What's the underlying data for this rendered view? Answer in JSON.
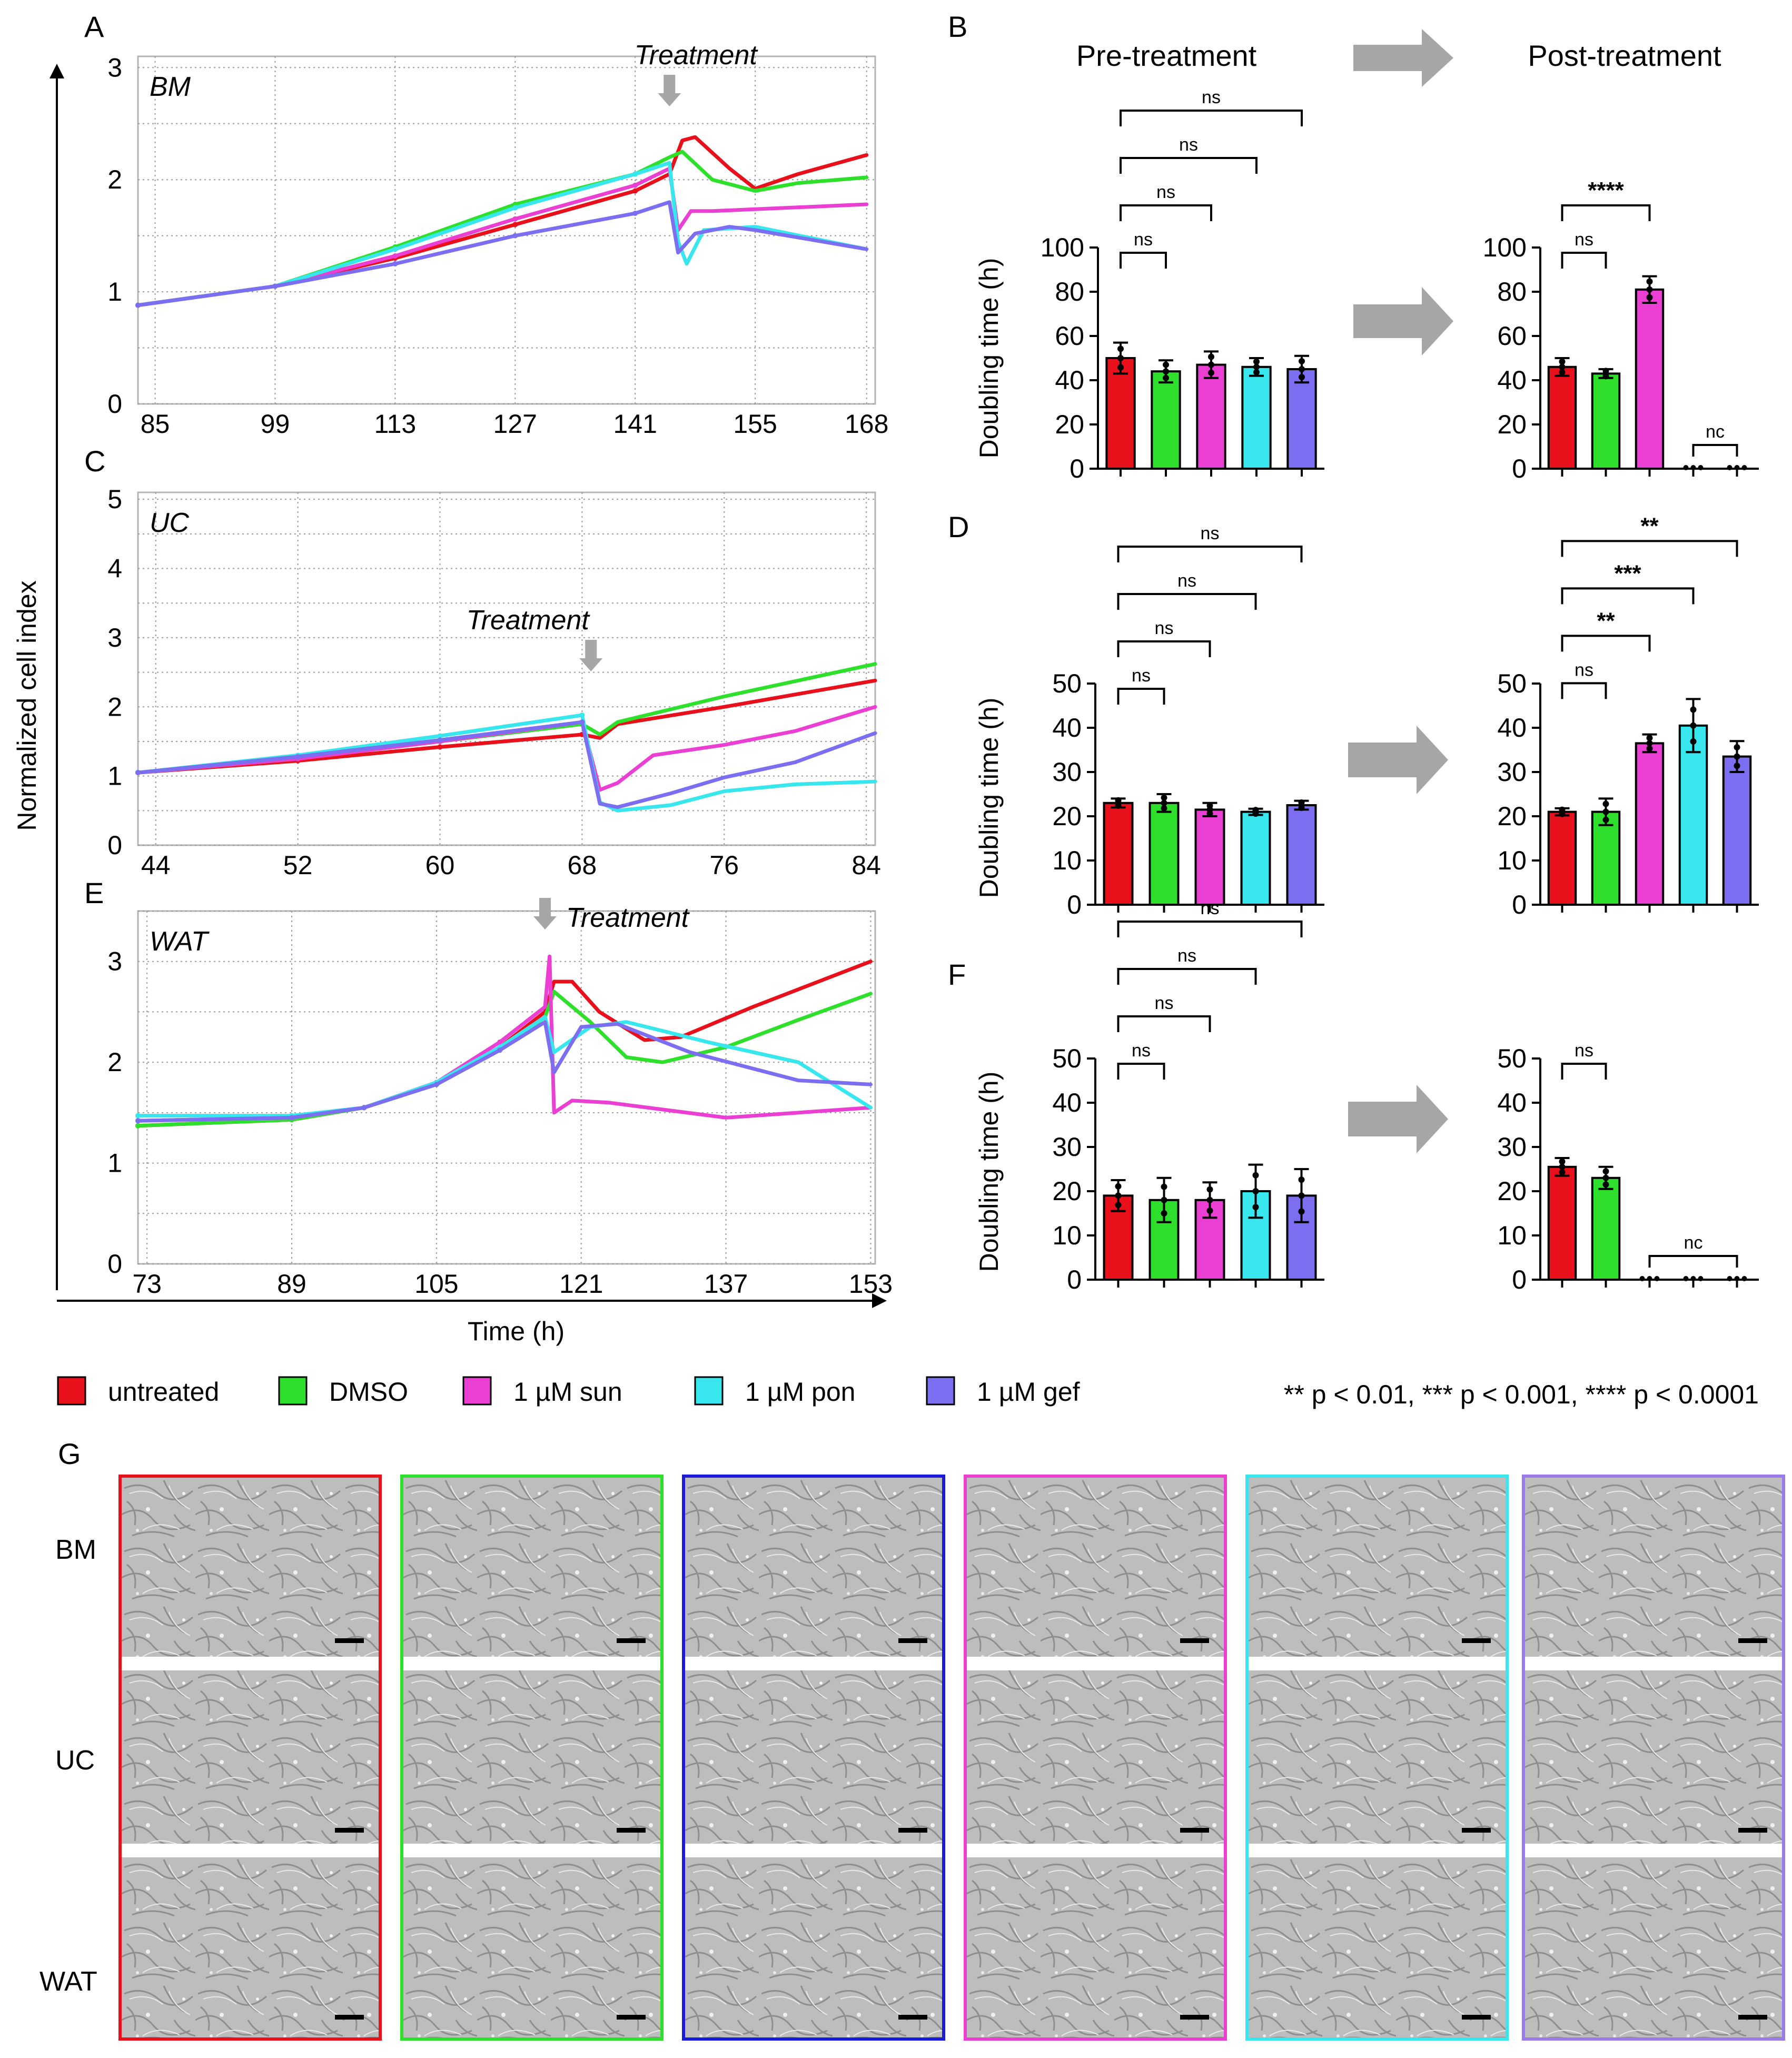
{
  "panel_letters": {
    "A": "A",
    "B": "B",
    "C": "C",
    "D": "D",
    "E": "E",
    "F": "F",
    "G": "G"
  },
  "shared": {
    "y_axis_label": "Normalized cell index",
    "x_axis_label": "Time (h)",
    "bar_y_label": "Doubling time (h)",
    "pre_title": "Pre-treatment",
    "post_title": "Post-treatment",
    "treatment_label": "Treatment"
  },
  "legend": [
    {
      "label": "untreated",
      "color": "#e8101a"
    },
    {
      "label": "DMSO",
      "color": "#2ee02c"
    },
    {
      "label": "1 µM sun",
      "color": "#ea3fd2"
    },
    {
      "label": "1 µM pon",
      "color": "#38e6ee"
    },
    {
      "label": "1 µM gef",
      "color": "#7b6ef0"
    }
  ],
  "pvalue_note": "** p < 0.01, *** p < 0.001, **** p < 0.0001",
  "colors": {
    "untreated": "#e8101a",
    "DMSO": "#2ee02c",
    "sun": "#ea3fd2",
    "pon": "#38e6ee",
    "gef": "#7b6ef0",
    "arrow": "#a6a6a6",
    "grid": "#9a9a9a"
  },
  "chart_data": [
    {
      "id": "A",
      "type": "line",
      "label": "BM",
      "xlim": [
        83,
        169
      ],
      "ylim": [
        0,
        3.1
      ],
      "xticks": [
        85,
        99,
        113,
        127,
        141,
        155,
        168
      ],
      "yticks": [
        0,
        1,
        2,
        3
      ],
      "treatment_time": 145,
      "series": [
        {
          "name": "untreated",
          "color": "#e8101a",
          "points": [
            [
              83,
              0.88
            ],
            [
              99,
              1.05
            ],
            [
              113,
              1.3
            ],
            [
              127,
              1.6
            ],
            [
              141,
              1.9
            ],
            [
              145,
              2.05
            ],
            [
              146.5,
              2.35
            ],
            [
              148,
              2.38
            ],
            [
              152,
              2.1
            ],
            [
              155,
              1.92
            ],
            [
              160,
              2.05
            ],
            [
              168,
              2.22
            ]
          ]
        },
        {
          "name": "DMSO",
          "color": "#2ee02c",
          "points": [
            [
              83,
              0.88
            ],
            [
              99,
              1.05
            ],
            [
              113,
              1.4
            ],
            [
              127,
              1.78
            ],
            [
              141,
              2.05
            ],
            [
              145,
              2.2
            ],
            [
              146.5,
              2.25
            ],
            [
              150,
              2.0
            ],
            [
              155,
              1.9
            ],
            [
              160,
              1.97
            ],
            [
              168,
              2.02
            ]
          ]
        },
        {
          "name": "1 µM sun",
          "color": "#ea3fd2",
          "points": [
            [
              83,
              0.88
            ],
            [
              99,
              1.05
            ],
            [
              113,
              1.32
            ],
            [
              127,
              1.65
            ],
            [
              141,
              1.95
            ],
            [
              145,
              2.1
            ],
            [
              146,
              1.55
            ],
            [
              147.5,
              1.72
            ],
            [
              150,
              1.72
            ],
            [
              168,
              1.78
            ]
          ]
        },
        {
          "name": "1 µM pon",
          "color": "#38e6ee",
          "points": [
            [
              83,
              0.88
            ],
            [
              99,
              1.05
            ],
            [
              113,
              1.38
            ],
            [
              127,
              1.75
            ],
            [
              141,
              2.05
            ],
            [
              145,
              2.15
            ],
            [
              146,
              1.45
            ],
            [
              147,
              1.25
            ],
            [
              149,
              1.55
            ],
            [
              155,
              1.58
            ],
            [
              168,
              1.38
            ]
          ]
        },
        {
          "name": "1 µM gef",
          "color": "#7b6ef0",
          "points": [
            [
              83,
              0.88
            ],
            [
              99,
              1.05
            ],
            [
              113,
              1.25
            ],
            [
              127,
              1.5
            ],
            [
              141,
              1.7
            ],
            [
              145,
              1.8
            ],
            [
              146,
              1.35
            ],
            [
              148,
              1.52
            ],
            [
              152,
              1.58
            ],
            [
              155,
              1.55
            ],
            [
              168,
              1.38
            ]
          ]
        }
      ]
    },
    {
      "id": "C",
      "type": "line",
      "label": "UC",
      "xlim": [
        43,
        84.5
      ],
      "ylim": [
        0,
        5.1
      ],
      "xticks": [
        44,
        52,
        60,
        68,
        76,
        84
      ],
      "yticks": [
        0,
        1,
        2,
        3,
        4,
        5
      ],
      "treatment_time": 68.5,
      "series": [
        {
          "name": "untreated",
          "color": "#e8101a",
          "points": [
            [
              43,
              1.05
            ],
            [
              52,
              1.22
            ],
            [
              60,
              1.42
            ],
            [
              68,
              1.6
            ],
            [
              69,
              1.55
            ],
            [
              70,
              1.75
            ],
            [
              76,
              2.0
            ],
            [
              84.5,
              2.38
            ]
          ]
        },
        {
          "name": "DMSO",
          "color": "#2ee02c",
          "points": [
            [
              43,
              1.05
            ],
            [
              52,
              1.25
            ],
            [
              60,
              1.5
            ],
            [
              68,
              1.75
            ],
            [
              69,
              1.6
            ],
            [
              70,
              1.78
            ],
            [
              76,
              2.15
            ],
            [
              84.5,
              2.62
            ]
          ]
        },
        {
          "name": "1 µM sun",
          "color": "#ea3fd2",
          "points": [
            [
              43,
              1.05
            ],
            [
              52,
              1.25
            ],
            [
              60,
              1.5
            ],
            [
              68,
              1.78
            ],
            [
              69,
              0.8
            ],
            [
              70,
              0.9
            ],
            [
              72,
              1.3
            ],
            [
              76,
              1.45
            ],
            [
              80,
              1.65
            ],
            [
              84.5,
              2.0
            ]
          ]
        },
        {
          "name": "1 µM pon",
          "color": "#38e6ee",
          "points": [
            [
              43,
              1.05
            ],
            [
              52,
              1.3
            ],
            [
              60,
              1.58
            ],
            [
              68,
              1.88
            ],
            [
              69,
              0.62
            ],
            [
              70,
              0.5
            ],
            [
              73,
              0.58
            ],
            [
              76,
              0.78
            ],
            [
              80,
              0.88
            ],
            [
              84.5,
              0.92
            ]
          ]
        },
        {
          "name": "1 µM gef",
          "color": "#7b6ef0",
          "points": [
            [
              43,
              1.05
            ],
            [
              52,
              1.28
            ],
            [
              60,
              1.52
            ],
            [
              68,
              1.78
            ],
            [
              69,
              0.6
            ],
            [
              70,
              0.55
            ],
            [
              73,
              0.75
            ],
            [
              76,
              0.98
            ],
            [
              80,
              1.2
            ],
            [
              84.5,
              1.62
            ]
          ]
        }
      ]
    },
    {
      "id": "E",
      "type": "line",
      "label": "WAT",
      "xlim": [
        72,
        153.5
      ],
      "ylim": [
        0,
        3.5
      ],
      "xticks": [
        73,
        89,
        105,
        121,
        137,
        153
      ],
      "yticks": [
        0,
        1,
        2,
        3
      ],
      "treatment_time": 117,
      "series": [
        {
          "name": "untreated",
          "color": "#e8101a",
          "points": [
            [
              72,
              1.37
            ],
            [
              89,
              1.43
            ],
            [
              97,
              1.55
            ],
            [
              105,
              1.8
            ],
            [
              112,
              2.15
            ],
            [
              117,
              2.5
            ],
            [
              118,
              2.8
            ],
            [
              120,
              2.8
            ],
            [
              123,
              2.5
            ],
            [
              128,
              2.22
            ],
            [
              132,
              2.25
            ],
            [
              140,
              2.55
            ],
            [
              153,
              3.0
            ]
          ]
        },
        {
          "name": "DMSO",
          "color": "#2ee02c",
          "points": [
            [
              72,
              1.37
            ],
            [
              89,
              1.43
            ],
            [
              97,
              1.55
            ],
            [
              105,
              1.78
            ],
            [
              112,
              2.12
            ],
            [
              117,
              2.45
            ],
            [
              118,
              2.7
            ],
            [
              122,
              2.4
            ],
            [
              126,
              2.05
            ],
            [
              130,
              2.0
            ],
            [
              137,
              2.15
            ],
            [
              145,
              2.42
            ],
            [
              153,
              2.68
            ]
          ]
        },
        {
          "name": "1 µM sun",
          "color": "#ea3fd2",
          "points": [
            [
              72,
              1.42
            ],
            [
              89,
              1.45
            ],
            [
              97,
              1.55
            ],
            [
              105,
              1.8
            ],
            [
              112,
              2.2
            ],
            [
              117,
              2.55
            ],
            [
              117.5,
              3.05
            ],
            [
              118,
              1.5
            ],
            [
              120,
              1.62
            ],
            [
              124,
              1.6
            ],
            [
              137,
              1.45
            ],
            [
              153,
              1.55
            ]
          ]
        },
        {
          "name": "1 µM pon",
          "color": "#38e6ee",
          "points": [
            [
              72,
              1.47
            ],
            [
              89,
              1.47
            ],
            [
              97,
              1.55
            ],
            [
              105,
              1.8
            ],
            [
              112,
              2.15
            ],
            [
              117,
              2.45
            ],
            [
              118,
              2.1
            ],
            [
              122,
              2.35
            ],
            [
              126,
              2.4
            ],
            [
              135,
              2.2
            ],
            [
              145,
              2.0
            ],
            [
              153,
              1.55
            ]
          ]
        },
        {
          "name": "1 µM gef",
          "color": "#7b6ef0",
          "points": [
            [
              72,
              1.42
            ],
            [
              89,
              1.45
            ],
            [
              97,
              1.55
            ],
            [
              105,
              1.78
            ],
            [
              112,
              2.12
            ],
            [
              117,
              2.4
            ],
            [
              118,
              1.9
            ],
            [
              121,
              2.35
            ],
            [
              125,
              2.38
            ],
            [
              133,
              2.1
            ],
            [
              145,
              1.82
            ],
            [
              153,
              1.78
            ]
          ]
        }
      ]
    },
    {
      "id": "B-pre",
      "type": "bar",
      "ylim": [
        0,
        100
      ],
      "yticks": [
        0,
        20,
        40,
        60,
        80,
        100
      ],
      "categories": [
        "untreated",
        "DMSO",
        "1 µM sun",
        "1 µM pon",
        "1 µM gef"
      ],
      "values": [
        50,
        44,
        47,
        46,
        45
      ],
      "errors": [
        7,
        5,
        6,
        4,
        6
      ],
      "brackets": [
        {
          "to": 1,
          "label": "ns"
        },
        {
          "to": 2,
          "label": "ns"
        },
        {
          "to": 3,
          "label": "ns"
        },
        {
          "to": 4,
          "label": "ns"
        }
      ]
    },
    {
      "id": "B-post",
      "type": "bar",
      "ylim": [
        0,
        100
      ],
      "yticks": [
        0,
        20,
        40,
        60,
        80,
        100
      ],
      "categories": [
        "untreated",
        "DMSO",
        "1 µM sun",
        "1 µM pon",
        "1 µM gef"
      ],
      "values": [
        46,
        43,
        81,
        0,
        0
      ],
      "errors": [
        4,
        2,
        6,
        0,
        0
      ],
      "brackets": [
        {
          "to": 1,
          "label": "ns"
        },
        {
          "to": 2,
          "label": "****"
        }
      ],
      "nc": {
        "from": 3,
        "to": 4,
        "label": "nc"
      }
    },
    {
      "id": "D-pre",
      "type": "bar",
      "ylim": [
        0,
        50
      ],
      "yticks": [
        0,
        10,
        20,
        30,
        40,
        50
      ],
      "categories": [
        "untreated",
        "DMSO",
        "1 µM sun",
        "1 µM pon",
        "1 µM gef"
      ],
      "values": [
        23,
        23,
        21.5,
        21,
        22.5
      ],
      "errors": [
        1,
        2,
        1.5,
        0.7,
        1
      ],
      "brackets": [
        {
          "to": 1,
          "label": "ns"
        },
        {
          "to": 2,
          "label": "ns"
        },
        {
          "to": 3,
          "label": "ns"
        },
        {
          "to": 4,
          "label": "ns"
        }
      ]
    },
    {
      "id": "D-post",
      "type": "bar",
      "ylim": [
        0,
        50
      ],
      "yticks": [
        0,
        10,
        20,
        30,
        40,
        50
      ],
      "categories": [
        "untreated",
        "DMSO",
        "1 µM sun",
        "1 µM pon",
        "1 µM gef"
      ],
      "values": [
        21,
        21,
        36.5,
        40.5,
        33.5
      ],
      "errors": [
        0.8,
        3,
        2,
        6,
        3.5
      ],
      "brackets": [
        {
          "to": 1,
          "label": "ns"
        },
        {
          "to": 2,
          "label": "**"
        },
        {
          "to": 3,
          "label": "***"
        },
        {
          "to": 4,
          "label": "**"
        }
      ]
    },
    {
      "id": "F-pre",
      "type": "bar",
      "ylim": [
        0,
        50
      ],
      "yticks": [
        0,
        10,
        20,
        30,
        40,
        50
      ],
      "categories": [
        "untreated",
        "DMSO",
        "1 µM sun",
        "1 µM pon",
        "1 µM gef"
      ],
      "values": [
        19,
        18,
        18,
        20,
        19
      ],
      "errors": [
        3.5,
        5,
        4,
        6,
        6
      ],
      "brackets": [
        {
          "to": 1,
          "label": "ns"
        },
        {
          "to": 2,
          "label": "ns"
        },
        {
          "to": 3,
          "label": "ns"
        },
        {
          "to": 4,
          "label": "ns"
        }
      ]
    },
    {
      "id": "F-post",
      "type": "bar",
      "ylim": [
        0,
        50
      ],
      "yticks": [
        0,
        10,
        20,
        30,
        40,
        50
      ],
      "categories": [
        "untreated",
        "DMSO",
        "1 µM sun",
        "1 µM pon",
        "1 µM gef"
      ],
      "values": [
        25.5,
        23,
        0,
        0,
        0
      ],
      "errors": [
        2,
        2.5,
        0,
        0,
        0
      ],
      "brackets": [
        {
          "to": 1,
          "label": "ns"
        }
      ],
      "nc": {
        "from": 2,
        "to": 4,
        "label": "nc"
      }
    }
  ],
  "micrographs": {
    "rows": [
      "BM",
      "UC",
      "WAT"
    ],
    "columns": [
      {
        "condition": "untreated",
        "border": "#e8101a"
      },
      {
        "condition": "DMSO",
        "border": "#2ee02c"
      },
      {
        "condition": "unlabeled",
        "border": "#1a1ad8"
      },
      {
        "condition": "1 µM sun",
        "border": "#ea3fd2"
      },
      {
        "condition": "1 µM pon",
        "border": "#38e6ee"
      },
      {
        "condition": "1 µM gef",
        "border": "#9a7be8"
      }
    ]
  }
}
